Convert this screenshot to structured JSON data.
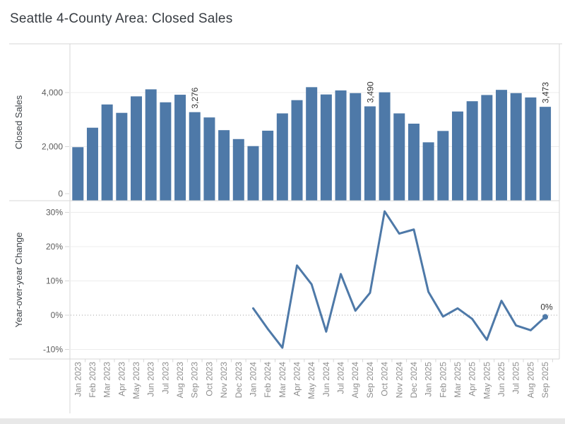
{
  "title": "Seattle 4-County Area: Closed Sales",
  "colors": {
    "mark_blue": "#4e79a8",
    "grid": "#ececec",
    "border": "#d7d7d7",
    "zero_line": "#a0a0a0",
    "label_dark": "#333333",
    "ytick_text": "#5c5c5c",
    "xtick_text": "#8e8e8e"
  },
  "chart_data": [
    {
      "type": "bar",
      "title": "Seattle 4-County Area: Closed Sales",
      "xlabel": "",
      "ylabel": "Closed Sales",
      "ylim": [
        0,
        4600
      ],
      "ytick_values": [
        0,
        2000,
        4000
      ],
      "ytick_labels": [
        "0",
        "2,000",
        "4,000"
      ],
      "grid": "horizontal",
      "legend_position": "none",
      "categories": [
        "Jan 2023",
        "Feb 2023",
        "Mar 2023",
        "Apr 2023",
        "May 2023",
        "Jun 2023",
        "Jul 2023",
        "Aug 2023",
        "Sep 2023",
        "Oct 2023",
        "Nov 2023",
        "Dec 2023",
        "Jan 2024",
        "Feb 2024",
        "Mar 2024",
        "Apr 2024",
        "May 2024",
        "Jun 2024",
        "Jul 2024",
        "Aug 2024",
        "Sep 2024",
        "Oct 2024",
        "Nov 2024",
        "Dec 2024",
        "Jan 2025",
        "Feb 2025",
        "Mar 2025",
        "Apr 2025",
        "May 2025",
        "Jun 2025",
        "Jul 2025",
        "Aug 2025",
        "Sep 2025"
      ],
      "values": [
        1980,
        2700,
        3560,
        3250,
        3860,
        4120,
        3640,
        3920,
        3276,
        3080,
        2610,
        2280,
        2020,
        2590,
        3230,
        3720,
        4200,
        3930,
        4080,
        3980,
        3490,
        4010,
        3230,
        2850,
        2160,
        2580,
        3300,
        3680,
        3910,
        4100,
        3980,
        3820,
        3473
      ],
      "point_labels": [
        {
          "category": "Sep 2023",
          "index": 8,
          "label": "3,276"
        },
        {
          "category": "Sep 2024",
          "index": 20,
          "label": "3,490"
        },
        {
          "category": "Sep 2025",
          "index": 32,
          "label": "3,473"
        }
      ]
    },
    {
      "type": "line",
      "title": "",
      "xlabel": "",
      "ylabel": "Year-over-year Change",
      "ylim": [
        -13,
        33
      ],
      "ytick_values": [
        -10,
        0,
        10,
        20,
        30
      ],
      "ytick_labels": [
        "-10%",
        "0%",
        "10%",
        "20%",
        "30%"
      ],
      "grid": "horizontal",
      "zero_line_style": "dotted",
      "legend_position": "none",
      "x_start_category": "Jan 2024",
      "x_start_index": 12,
      "x": [
        "Jan 2024",
        "Feb 2024",
        "Mar 2024",
        "Apr 2024",
        "May 2024",
        "Jun 2024",
        "Jul 2024",
        "Aug 2024",
        "Sep 2024",
        "Oct 2024",
        "Nov 2024",
        "Dec 2024",
        "Jan 2025",
        "Feb 2025",
        "Mar 2025",
        "Apr 2025",
        "May 2025",
        "Jun 2025",
        "Jul 2025",
        "Aug 2025",
        "Sep 2025"
      ],
      "values": [
        2,
        -4,
        -9.5,
        14.5,
        9,
        -4.8,
        12,
        1.3,
        6.5,
        30.3,
        23.8,
        25,
        6.8,
        -0.4,
        2,
        -1.1,
        -7.2,
        4.2,
        -3,
        -4.4,
        -0.5
      ],
      "end_point_marker": true,
      "end_point_label": "0%"
    }
  ]
}
